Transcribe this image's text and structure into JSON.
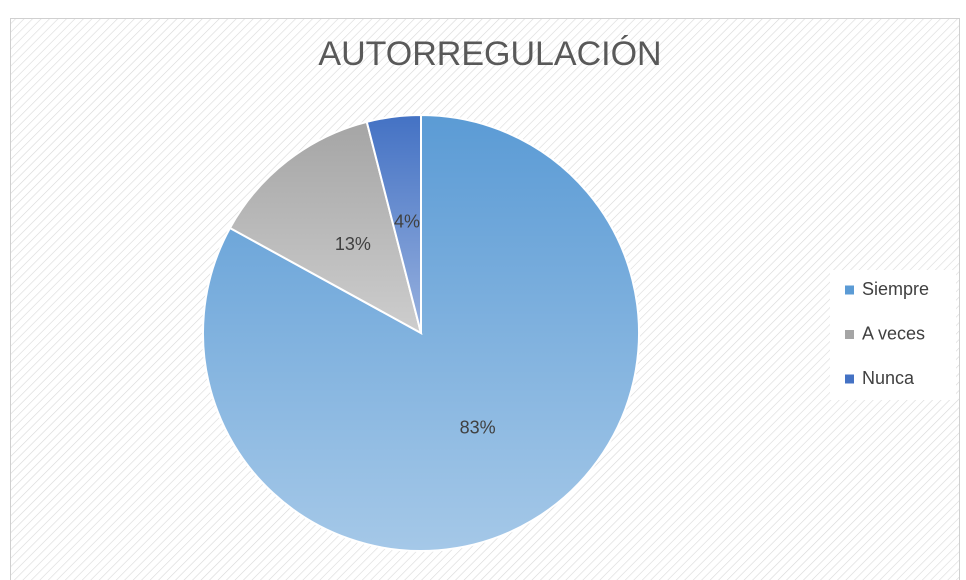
{
  "chart_data": {
    "type": "pie",
    "title": "AUTORREGULACIÓN",
    "categories": [
      "Siempre",
      "A veces",
      "Nunca"
    ],
    "values": [
      83,
      13,
      4
    ],
    "value_labels": [
      "83%",
      "13%",
      "4%"
    ],
    "colors": [
      "#5b9bd5",
      "#a5a5a5",
      "#4472c4"
    ],
    "legend": "right"
  }
}
